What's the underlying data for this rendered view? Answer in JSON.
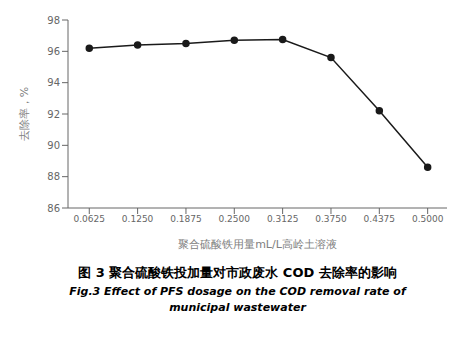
{
  "chart_data": {
    "type": "line",
    "title": "图 3  聚合硫酸铁投加量对市政废水 COD 去除率的影响",
    "subtitle": [
      "Fig.3 Effect of PFS dosage on the COD removal rate of",
      "municipal wastewater"
    ],
    "x_label": "聚合硫酸铁用量mL/L高岭土溶液",
    "y_label": "去除率，%",
    "x": [
      0.0625,
      0.125,
      0.1875,
      0.25,
      0.3125,
      0.375,
      0.4375,
      0.5
    ],
    "values": [
      96.2,
      96.4,
      96.5,
      96.7,
      96.75,
      95.6,
      92.2,
      88.6
    ],
    "color": "#1a1a1a",
    "marker": "circle",
    "xlim": [
      0.035,
      0.525
    ],
    "xticks": [
      0.0625,
      {
        "value": 0.125,
        "label": "0.1250"
      },
      0.1875,
      {
        "value": 0.25,
        "label": "0.2500"
      },
      0.3125,
      {
        "value": 0.375,
        "label": "0.3750"
      },
      0.4375,
      {
        "value": 0.5,
        "label": "0.5000"
      }
    ],
    "ylim": [
      86,
      98
    ],
    "yticks": [
      86,
      88,
      90,
      92,
      94,
      96,
      98
    ],
    "grid": false
  }
}
